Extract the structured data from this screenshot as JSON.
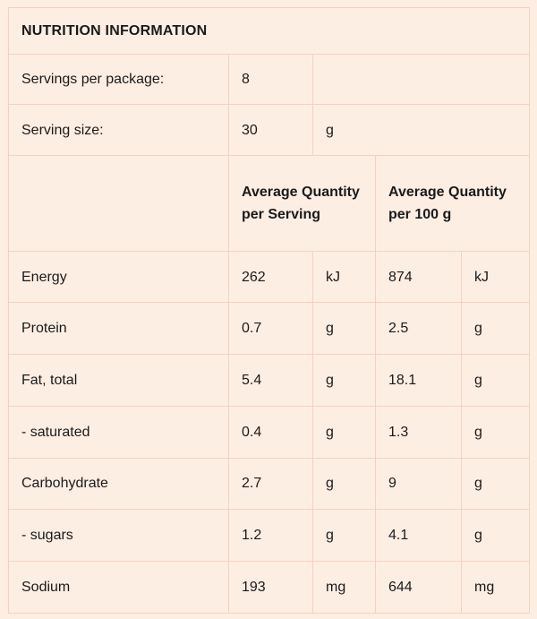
{
  "title": "NUTRITION INFORMATION",
  "servings_per_package": {
    "label": "Servings per package:",
    "value": "8"
  },
  "serving_size": {
    "label": "Serving size:",
    "value": "30",
    "unit": "g"
  },
  "headers": {
    "per_serving": "Average Quantity per Serving",
    "per_100g": "Average Quantity per 100 g"
  },
  "rows": [
    {
      "name": "Energy",
      "serving": "262",
      "serving_unit": "kJ",
      "per100": "874",
      "per100_unit": "kJ"
    },
    {
      "name": "Protein",
      "serving": "0.7",
      "serving_unit": "g",
      "per100": "2.5",
      "per100_unit": "g"
    },
    {
      "name": "Fat, total",
      "serving": "5.4",
      "serving_unit": "g",
      "per100": "18.1",
      "per100_unit": "g"
    },
    {
      "name": "- saturated",
      "serving": "0.4",
      "serving_unit": "g",
      "per100": "1.3",
      "per100_unit": "g"
    },
    {
      "name": "Carbohydrate",
      "serving": "2.7",
      "serving_unit": "g",
      "per100": "9",
      "per100_unit": "g"
    },
    {
      "name": "- sugars",
      "serving": "1.2",
      "serving_unit": "g",
      "per100": "4.1",
      "per100_unit": "g"
    },
    {
      "name": "Sodium",
      "serving": "193",
      "serving_unit": "mg",
      "per100": "644",
      "per100_unit": "mg"
    }
  ]
}
